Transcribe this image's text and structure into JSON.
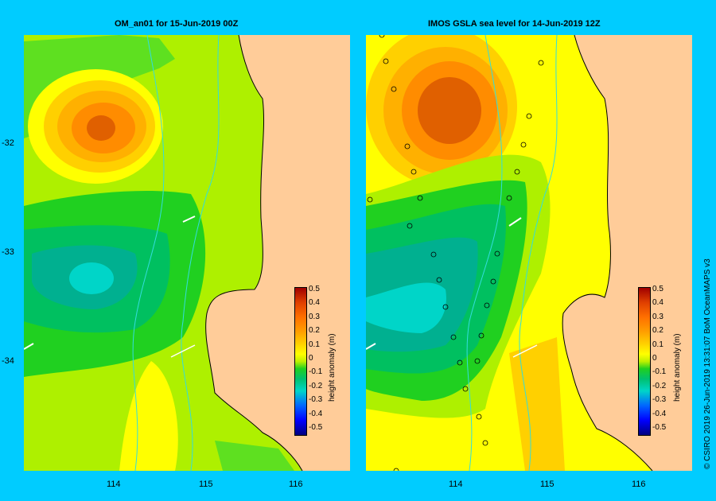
{
  "panels": [
    {
      "title": "OM_an01  for 15-Jun-2019 00Z",
      "colorbar": {
        "label": "height anomaly  (m)",
        "ticks": [
          "0.5",
          "0.4",
          "0.3",
          "0.2",
          "0.1",
          "0",
          "-0.1",
          "-0.2",
          "-0.3",
          "-0.4",
          "-0.5"
        ]
      }
    },
    {
      "title": "IMOS GSLA sea level  for 14-Jun-2019 12Z",
      "colorbar": {
        "label": "height anomaly  (m)",
        "ticks": [
          "0.5",
          "0.4",
          "0.3",
          "0.2",
          "0.1",
          "0",
          "-0.1",
          "-0.2",
          "-0.3",
          "-0.4",
          "-0.5"
        ]
      }
    }
  ],
  "axes": {
    "lat_ticks": [
      "-32",
      "-33",
      "-34"
    ],
    "lon_ticks": [
      "114",
      "115",
      "116"
    ]
  },
  "colors": {
    "background": "#00ccff",
    "land": "#ffcc99",
    "contour_scale": [
      "#000080",
      "#0000ff",
      "#0066ff",
      "#00bfff",
      "#00d5c8",
      "#00c070",
      "#20d020",
      "#bff000",
      "#ffff00",
      "#ffd000",
      "#ffa000",
      "#ff7000",
      "#e04000",
      "#a00000"
    ]
  },
  "credit": "© CSIRO 2019   26-Jun-2019 13:31:07 BoM OceanMAPS v3"
}
